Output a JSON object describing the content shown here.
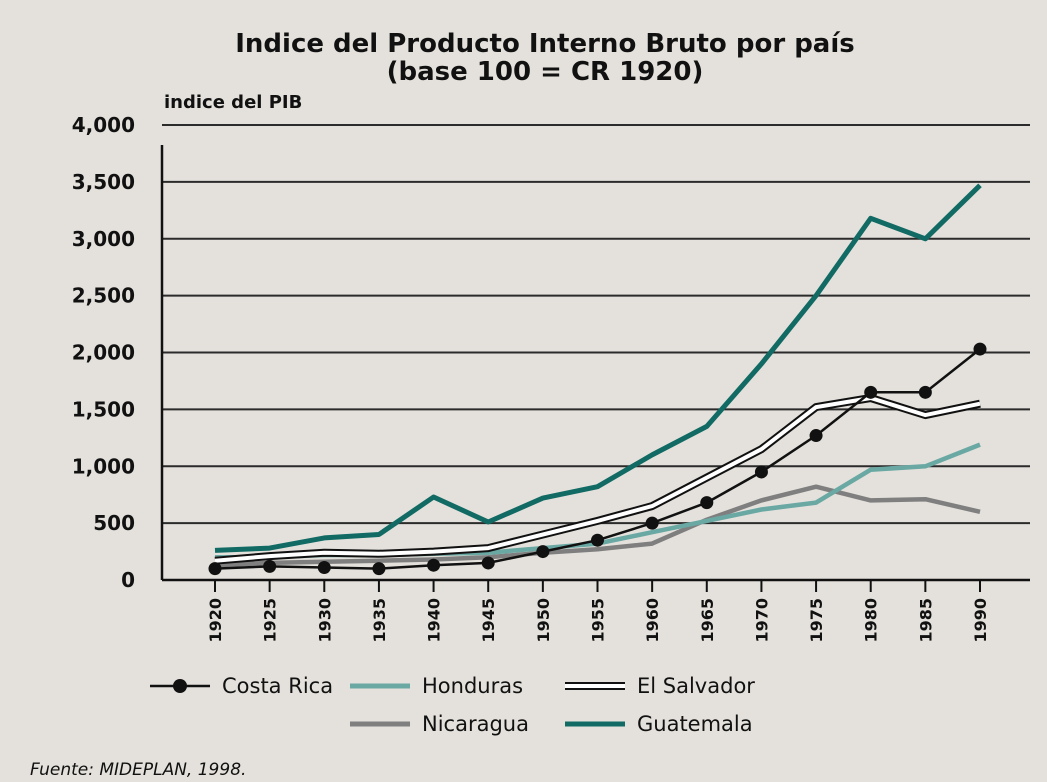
{
  "chart_data": {
    "type": "line",
    "title": "Indice del Producto Interno Bruto por país",
    "subtitle": "(base 100 = CR 1920)",
    "ylabel": "indice del PIB",
    "xlabel": "",
    "source": "Fuente: MIDEPLAN, 1998.",
    "ylim": [
      0,
      4000
    ],
    "yticks": [
      "4,000",
      "3,500",
      "3,000",
      "2,500",
      "2,000",
      "1,500",
      "1,000",
      "500",
      "0"
    ],
    "ytick_values": [
      4000,
      3500,
      3000,
      2500,
      2000,
      1500,
      1000,
      500,
      0
    ],
    "x": [
      "1920",
      "1925",
      "1930",
      "1935",
      "1940",
      "1945",
      "1950",
      "1955",
      "1960",
      "1965",
      "1970",
      "1975",
      "1980",
      "1985",
      "1990"
    ],
    "grid": "horizontal",
    "legend_position": "bottom",
    "series": [
      {
        "name": "Costa Rica",
        "color": "#111111",
        "style": "line-markers",
        "values": [
          100,
          120,
          110,
          100,
          130,
          150,
          250,
          350,
          500,
          680,
          950,
          1270,
          1650,
          1650,
          2030
        ]
      },
      {
        "name": "Honduras",
        "color": "#6aa8a4",
        "style": "line",
        "values": [
          200,
          200,
          220,
          220,
          230,
          240,
          280,
          320,
          420,
          520,
          620,
          680,
          970,
          1000,
          1190
        ]
      },
      {
        "name": "El Salvador",
        "color": "#ffffff",
        "style": "double-line",
        "values": [
          170,
          210,
          240,
          230,
          250,
          280,
          400,
          520,
          650,
          900,
          1150,
          1520,
          1600,
          1450,
          1550
        ]
      },
      {
        "name": "Nicaragua",
        "color": "#7f7f7f",
        "style": "line",
        "values": [
          130,
          150,
          160,
          170,
          180,
          200,
          240,
          270,
          320,
          530,
          700,
          820,
          700,
          710,
          600
        ]
      },
      {
        "name": "Guatemala",
        "color": "#116a63",
        "style": "line",
        "values": [
          260,
          280,
          370,
          400,
          730,
          510,
          720,
          820,
          1100,
          1350,
          1900,
          2500,
          3180,
          3000,
          3470
        ]
      }
    ]
  }
}
